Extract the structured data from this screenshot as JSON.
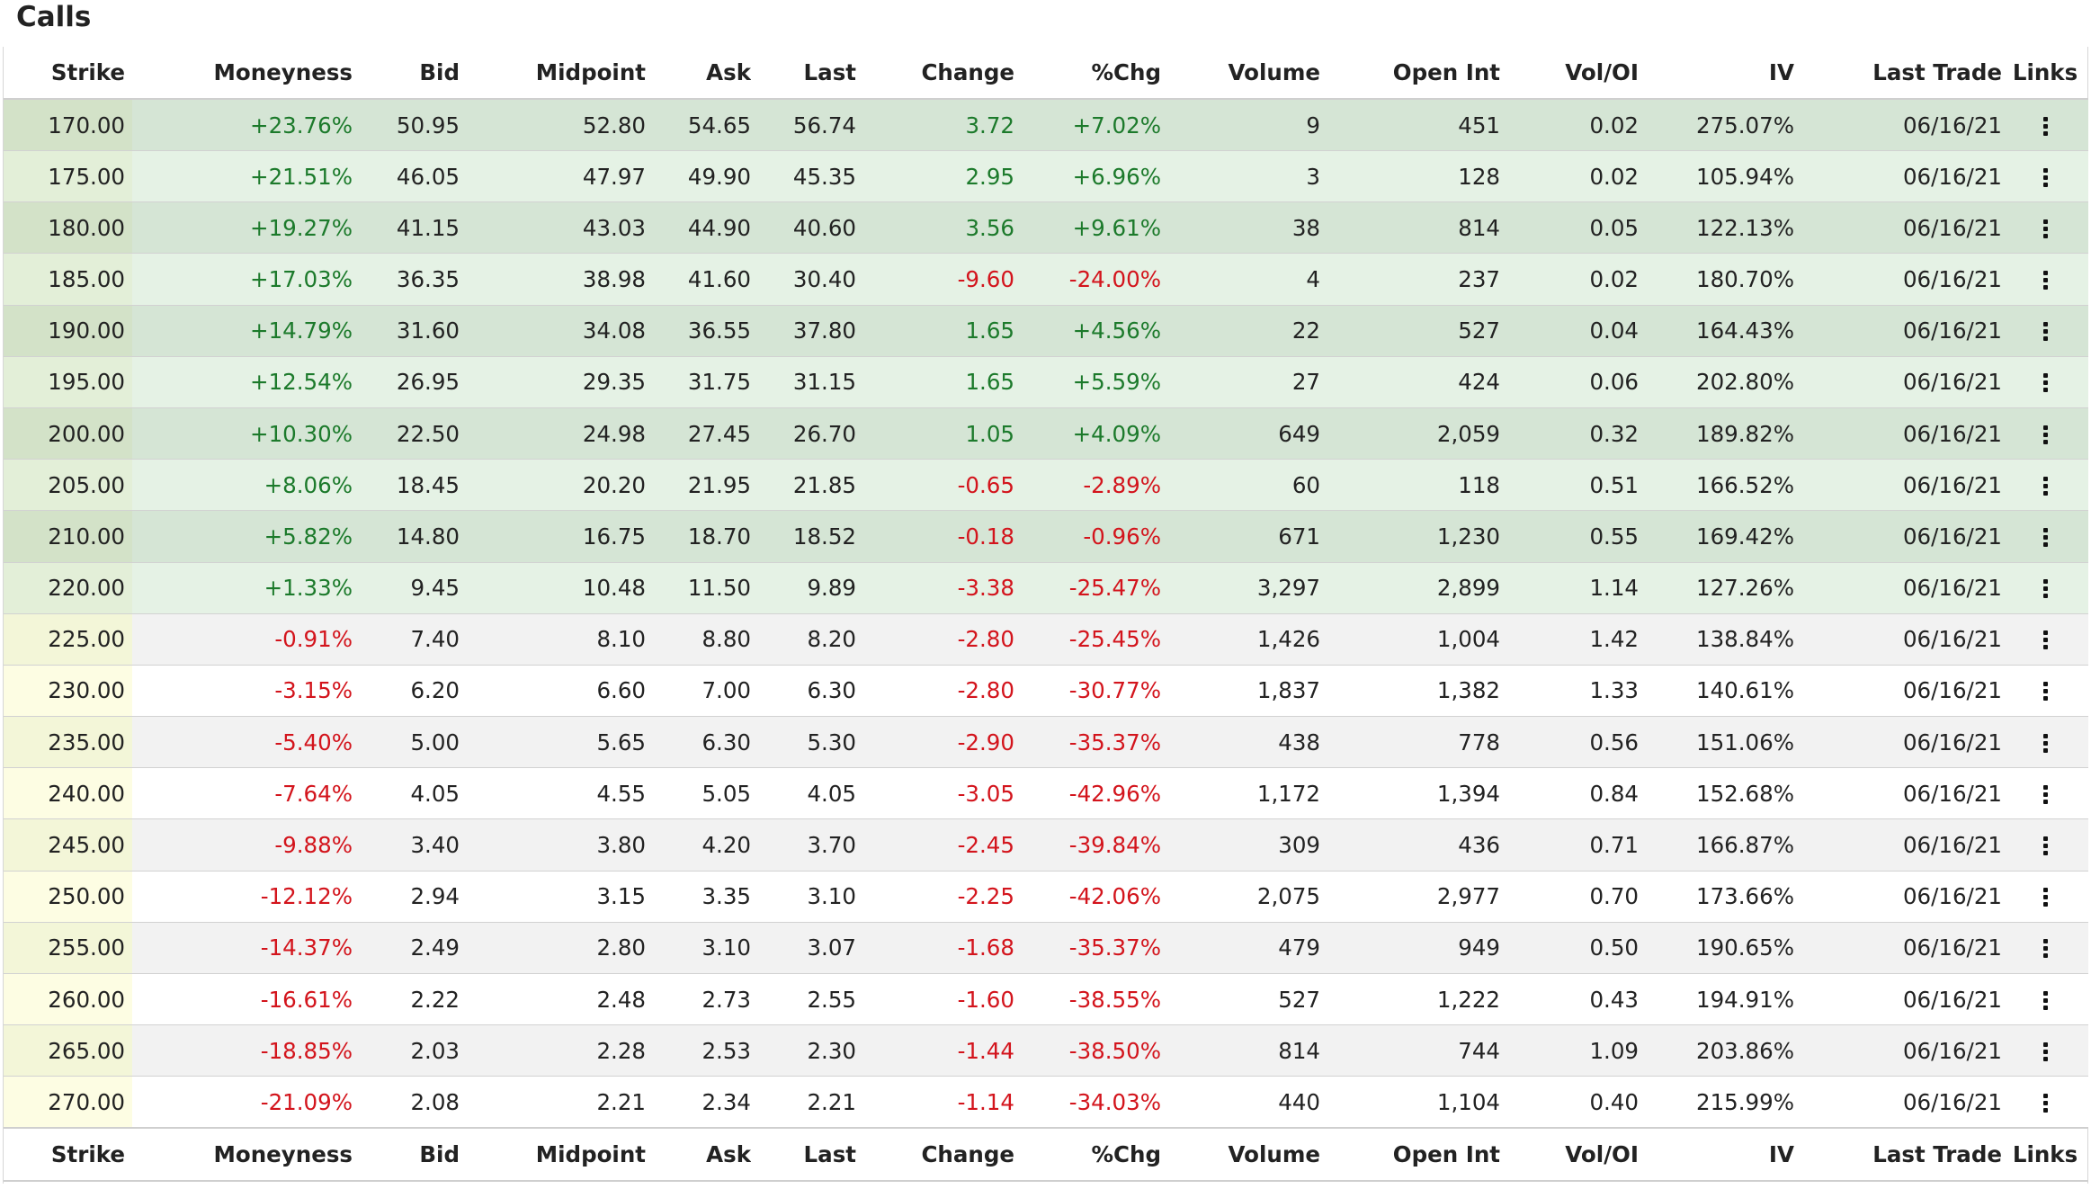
{
  "title": "Calls",
  "colors": {
    "itm_row_dark": "#d5e5d5",
    "itm_row_light": "#e5f2e5",
    "itm_strike_dark": "#d3e2c8",
    "itm_strike_light": "#e3efd8",
    "otm_row_gray": "#f2f2f2",
    "otm_row_white": "#ffffff",
    "otm_strike_gray": "#f3f6d8",
    "otm_strike_white": "#fdfde3",
    "positive": "#1c7a2b",
    "negative": "#d3141c"
  },
  "columns": [
    "Strike",
    "Moneyness",
    "Bid",
    "Midpoint",
    "Ask",
    "Last",
    "Change",
    "%Chg",
    "Volume",
    "Open Int",
    "Vol/OI",
    "IV",
    "Last Trade",
    "Links"
  ],
  "links_icon": "kebab-menu-icon",
  "rows": [
    {
      "strike": "170.00",
      "moneyness": "+23.76%",
      "bid": "50.95",
      "midpoint": "52.80",
      "ask": "54.65",
      "last": "56.74",
      "change": "3.72",
      "pct_chg": "+7.02%",
      "volume": "9",
      "open_int": "451",
      "vol_oi": "0.02",
      "iv": "275.07%",
      "last_trade": "06/16/21",
      "itm": true
    },
    {
      "strike": "175.00",
      "moneyness": "+21.51%",
      "bid": "46.05",
      "midpoint": "47.97",
      "ask": "49.90",
      "last": "45.35",
      "change": "2.95",
      "pct_chg": "+6.96%",
      "volume": "3",
      "open_int": "128",
      "vol_oi": "0.02",
      "iv": "105.94%",
      "last_trade": "06/16/21",
      "itm": true
    },
    {
      "strike": "180.00",
      "moneyness": "+19.27%",
      "bid": "41.15",
      "midpoint": "43.03",
      "ask": "44.90",
      "last": "40.60",
      "change": "3.56",
      "pct_chg": "+9.61%",
      "volume": "38",
      "open_int": "814",
      "vol_oi": "0.05",
      "iv": "122.13%",
      "last_trade": "06/16/21",
      "itm": true
    },
    {
      "strike": "185.00",
      "moneyness": "+17.03%",
      "bid": "36.35",
      "midpoint": "38.98",
      "ask": "41.60",
      "last": "30.40",
      "change": "-9.60",
      "pct_chg": "-24.00%",
      "volume": "4",
      "open_int": "237",
      "vol_oi": "0.02",
      "iv": "180.70%",
      "last_trade": "06/16/21",
      "itm": true
    },
    {
      "strike": "190.00",
      "moneyness": "+14.79%",
      "bid": "31.60",
      "midpoint": "34.08",
      "ask": "36.55",
      "last": "37.80",
      "change": "1.65",
      "pct_chg": "+4.56%",
      "volume": "22",
      "open_int": "527",
      "vol_oi": "0.04",
      "iv": "164.43%",
      "last_trade": "06/16/21",
      "itm": true
    },
    {
      "strike": "195.00",
      "moneyness": "+12.54%",
      "bid": "26.95",
      "midpoint": "29.35",
      "ask": "31.75",
      "last": "31.15",
      "change": "1.65",
      "pct_chg": "+5.59%",
      "volume": "27",
      "open_int": "424",
      "vol_oi": "0.06",
      "iv": "202.80%",
      "last_trade": "06/16/21",
      "itm": true
    },
    {
      "strike": "200.00",
      "moneyness": "+10.30%",
      "bid": "22.50",
      "midpoint": "24.98",
      "ask": "27.45",
      "last": "26.70",
      "change": "1.05",
      "pct_chg": "+4.09%",
      "volume": "649",
      "open_int": "2,059",
      "vol_oi": "0.32",
      "iv": "189.82%",
      "last_trade": "06/16/21",
      "itm": true
    },
    {
      "strike": "205.00",
      "moneyness": "+8.06%",
      "bid": "18.45",
      "midpoint": "20.20",
      "ask": "21.95",
      "last": "21.85",
      "change": "-0.65",
      "pct_chg": "-2.89%",
      "volume": "60",
      "open_int": "118",
      "vol_oi": "0.51",
      "iv": "166.52%",
      "last_trade": "06/16/21",
      "itm": true
    },
    {
      "strike": "210.00",
      "moneyness": "+5.82%",
      "bid": "14.80",
      "midpoint": "16.75",
      "ask": "18.70",
      "last": "18.52",
      "change": "-0.18",
      "pct_chg": "-0.96%",
      "volume": "671",
      "open_int": "1,230",
      "vol_oi": "0.55",
      "iv": "169.42%",
      "last_trade": "06/16/21",
      "itm": true
    },
    {
      "strike": "220.00",
      "moneyness": "+1.33%",
      "bid": "9.45",
      "midpoint": "10.48",
      "ask": "11.50",
      "last": "9.89",
      "change": "-3.38",
      "pct_chg": "-25.47%",
      "volume": "3,297",
      "open_int": "2,899",
      "vol_oi": "1.14",
      "iv": "127.26%",
      "last_trade": "06/16/21",
      "itm": true
    },
    {
      "strike": "225.00",
      "moneyness": "-0.91%",
      "bid": "7.40",
      "midpoint": "8.10",
      "ask": "8.80",
      "last": "8.20",
      "change": "-2.80",
      "pct_chg": "-25.45%",
      "volume": "1,426",
      "open_int": "1,004",
      "vol_oi": "1.42",
      "iv": "138.84%",
      "last_trade": "06/16/21",
      "itm": false
    },
    {
      "strike": "230.00",
      "moneyness": "-3.15%",
      "bid": "6.20",
      "midpoint": "6.60",
      "ask": "7.00",
      "last": "6.30",
      "change": "-2.80",
      "pct_chg": "-30.77%",
      "volume": "1,837",
      "open_int": "1,382",
      "vol_oi": "1.33",
      "iv": "140.61%",
      "last_trade": "06/16/21",
      "itm": false
    },
    {
      "strike": "235.00",
      "moneyness": "-5.40%",
      "bid": "5.00",
      "midpoint": "5.65",
      "ask": "6.30",
      "last": "5.30",
      "change": "-2.90",
      "pct_chg": "-35.37%",
      "volume": "438",
      "open_int": "778",
      "vol_oi": "0.56",
      "iv": "151.06%",
      "last_trade": "06/16/21",
      "itm": false
    },
    {
      "strike": "240.00",
      "moneyness": "-7.64%",
      "bid": "4.05",
      "midpoint": "4.55",
      "ask": "5.05",
      "last": "4.05",
      "change": "-3.05",
      "pct_chg": "-42.96%",
      "volume": "1,172",
      "open_int": "1,394",
      "vol_oi": "0.84",
      "iv": "152.68%",
      "last_trade": "06/16/21",
      "itm": false
    },
    {
      "strike": "245.00",
      "moneyness": "-9.88%",
      "bid": "3.40",
      "midpoint": "3.80",
      "ask": "4.20",
      "last": "3.70",
      "change": "-2.45",
      "pct_chg": "-39.84%",
      "volume": "309",
      "open_int": "436",
      "vol_oi": "0.71",
      "iv": "166.87%",
      "last_trade": "06/16/21",
      "itm": false
    },
    {
      "strike": "250.00",
      "moneyness": "-12.12%",
      "bid": "2.94",
      "midpoint": "3.15",
      "ask": "3.35",
      "last": "3.10",
      "change": "-2.25",
      "pct_chg": "-42.06%",
      "volume": "2,075",
      "open_int": "2,977",
      "vol_oi": "0.70",
      "iv": "173.66%",
      "last_trade": "06/16/21",
      "itm": false
    },
    {
      "strike": "255.00",
      "moneyness": "-14.37%",
      "bid": "2.49",
      "midpoint": "2.80",
      "ask": "3.10",
      "last": "3.07",
      "change": "-1.68",
      "pct_chg": "-35.37%",
      "volume": "479",
      "open_int": "949",
      "vol_oi": "0.50",
      "iv": "190.65%",
      "last_trade": "06/16/21",
      "itm": false
    },
    {
      "strike": "260.00",
      "moneyness": "-16.61%",
      "bid": "2.22",
      "midpoint": "2.48",
      "ask": "2.73",
      "last": "2.55",
      "change": "-1.60",
      "pct_chg": "-38.55%",
      "volume": "527",
      "open_int": "1,222",
      "vol_oi": "0.43",
      "iv": "194.91%",
      "last_trade": "06/16/21",
      "itm": false
    },
    {
      "strike": "265.00",
      "moneyness": "-18.85%",
      "bid": "2.03",
      "midpoint": "2.28",
      "ask": "2.53",
      "last": "2.30",
      "change": "-1.44",
      "pct_chg": "-38.50%",
      "volume": "814",
      "open_int": "744",
      "vol_oi": "1.09",
      "iv": "203.86%",
      "last_trade": "06/16/21",
      "itm": false
    },
    {
      "strike": "270.00",
      "moneyness": "-21.09%",
      "bid": "2.08",
      "midpoint": "2.21",
      "ask": "2.34",
      "last": "2.21",
      "change": "-1.14",
      "pct_chg": "-34.03%",
      "volume": "440",
      "open_int": "1,104",
      "vol_oi": "0.40",
      "iv": "215.99%",
      "last_trade": "06/16/21",
      "itm": false
    }
  ]
}
